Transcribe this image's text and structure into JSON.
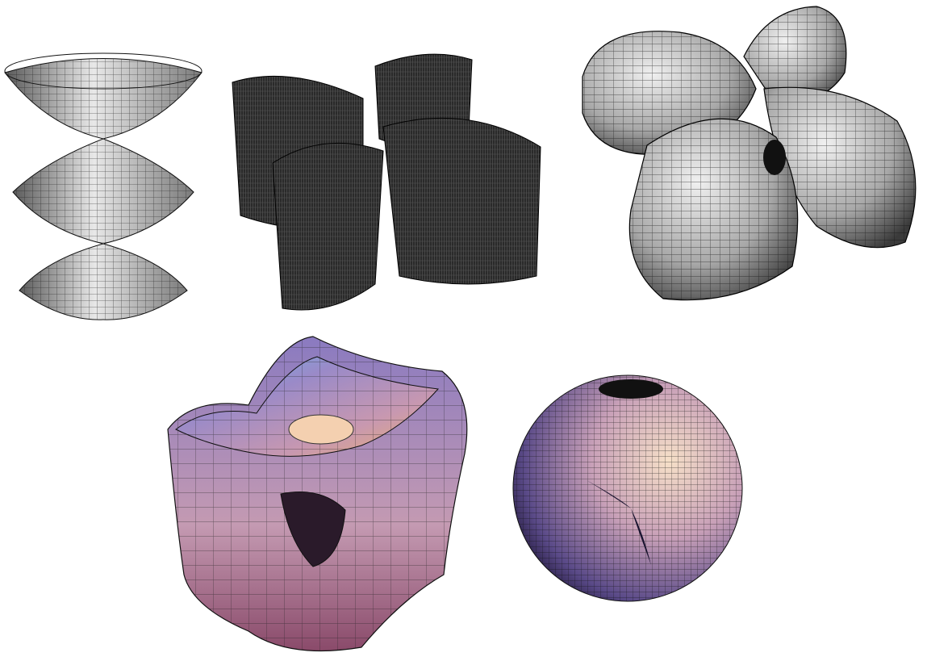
{
  "figures": [
    {
      "id": "stacked-paraboloids",
      "palette": [
        "#f2f2f2",
        "#8c8c8c",
        "#3a3a3a"
      ]
    },
    {
      "id": "intersecting-cylinders",
      "palette": [
        "#6a6a6a",
        "#2b2b2b",
        "#111111"
      ]
    },
    {
      "id": "four-lobed-surface",
      "palette": [
        "#e6e6e6",
        "#9a9a9a",
        "#2e2e2e"
      ]
    },
    {
      "id": "twisted-cube-surface",
      "palette": [
        "#7ec8f0",
        "#c89ab8",
        "#e8b070",
        "#6a5aa8"
      ]
    },
    {
      "id": "shaded-sphere",
      "palette": [
        "#4a3a78",
        "#c8a0b8",
        "#f4d8c0"
      ]
    }
  ]
}
